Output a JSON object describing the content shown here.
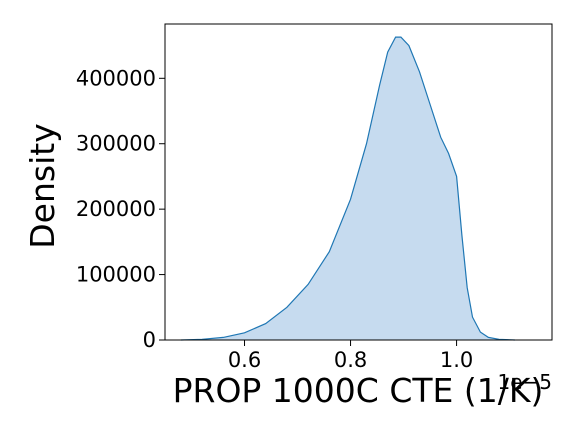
{
  "chart_data": {
    "type": "area",
    "title": "",
    "xlabel": "PROP 1000C CTE (1/K)",
    "ylabel": "Density",
    "x_offset_label": "1e−5",
    "xlim": [
      0.45,
      1.18
    ],
    "ylim": [
      0,
      483000
    ],
    "x_ticks": [
      {
        "value": 0.6,
        "label": "0.6"
      },
      {
        "value": 0.8,
        "label": "0.8"
      },
      {
        "value": 1.0,
        "label": "1.0"
      }
    ],
    "y_ticks": [
      {
        "value": 0,
        "label": "0"
      },
      {
        "value": 100000,
        "label": "100000"
      },
      {
        "value": 200000,
        "label": "200000"
      },
      {
        "value": 300000,
        "label": "300000"
      },
      {
        "value": 400000,
        "label": "400000"
      }
    ],
    "grid": false,
    "legend": "none",
    "series": [
      {
        "fill_color": "#c6dbef",
        "line_color": "#1f77b4",
        "points": [
          [
            0.48,
            0
          ],
          [
            0.52,
            1000
          ],
          [
            0.56,
            4000
          ],
          [
            0.6,
            11000
          ],
          [
            0.64,
            25000
          ],
          [
            0.68,
            50000
          ],
          [
            0.72,
            85000
          ],
          [
            0.76,
            135000
          ],
          [
            0.8,
            215000
          ],
          [
            0.83,
            300000
          ],
          [
            0.855,
            390000
          ],
          [
            0.87,
            440000
          ],
          [
            0.885,
            463000
          ],
          [
            0.895,
            463000
          ],
          [
            0.91,
            450000
          ],
          [
            0.93,
            410000
          ],
          [
            0.95,
            360000
          ],
          [
            0.97,
            310000
          ],
          [
            0.985,
            285000
          ],
          [
            1.0,
            250000
          ],
          [
            1.01,
            160000
          ],
          [
            1.02,
            80000
          ],
          [
            1.03,
            35000
          ],
          [
            1.045,
            12000
          ],
          [
            1.06,
            4000
          ],
          [
            1.08,
            1000
          ],
          [
            1.11,
            0
          ]
        ]
      }
    ]
  }
}
